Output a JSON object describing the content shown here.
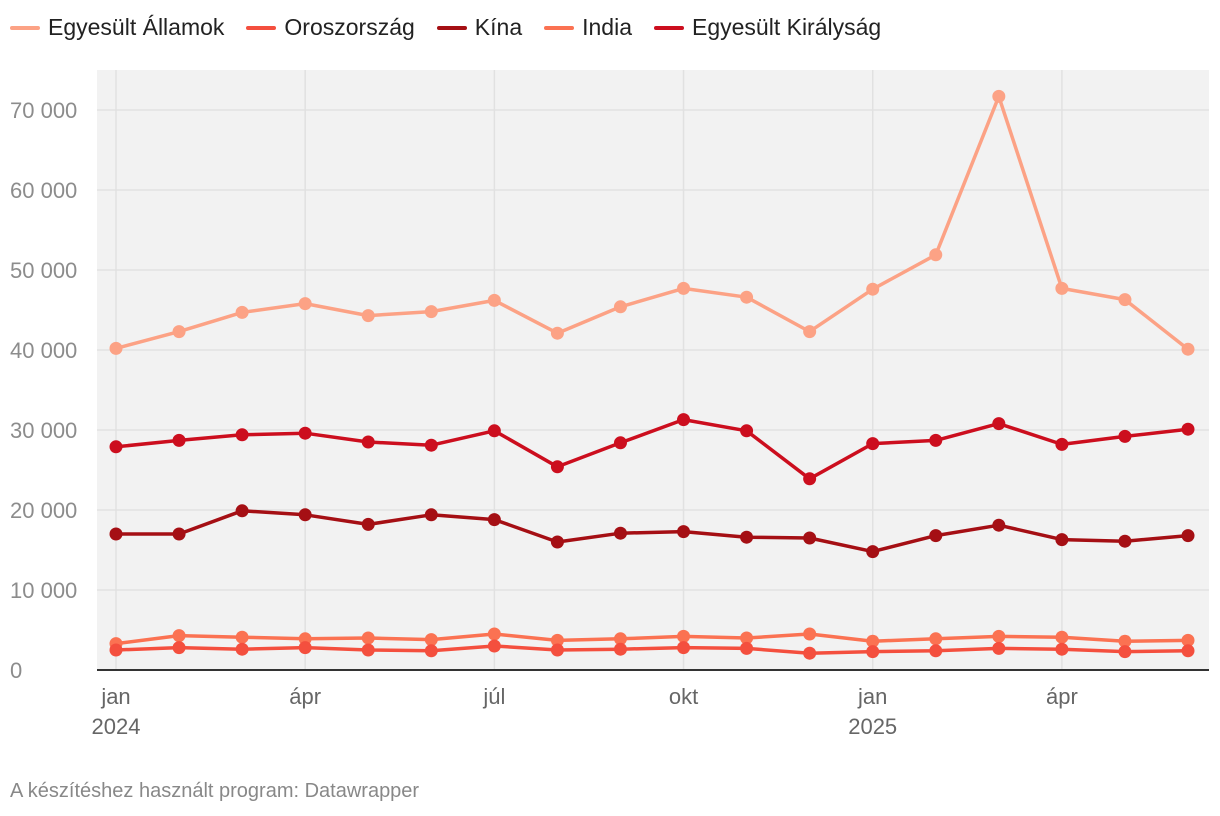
{
  "chart_data": {
    "type": "line",
    "x": [
      "2024-01",
      "2024-02",
      "2024-03",
      "2024-04",
      "2024-05",
      "2024-06",
      "2024-07",
      "2024-08",
      "2024-09",
      "2024-10",
      "2024-11",
      "2024-12",
      "2025-01",
      "2025-02",
      "2025-03",
      "2025-04",
      "2025-05",
      "2025-06"
    ],
    "x_ticks": [
      {
        "label": "jan",
        "year": "2024"
      },
      {
        "label": "ápr",
        "year": ""
      },
      {
        "label": "júl",
        "year": ""
      },
      {
        "label": "okt",
        "year": ""
      },
      {
        "label": "jan",
        "year": "2025"
      },
      {
        "label": "ápr",
        "year": ""
      }
    ],
    "ylim": [
      0,
      75000
    ],
    "yticks": [
      0,
      10000,
      20000,
      30000,
      40000,
      50000,
      60000,
      70000
    ],
    "ytick_labels": [
      "0",
      "10 000",
      "20 000",
      "30 000",
      "40 000",
      "50 000",
      "60 000",
      "70 000"
    ],
    "grid": true,
    "legend_position": "top-left",
    "series": [
      {
        "name": "Egyesült Államok",
        "color": "#fca285",
        "values": [
          40200,
          42300,
          44700,
          45800,
          44300,
          44800,
          46200,
          42100,
          45400,
          47700,
          46600,
          42300,
          47600,
          51900,
          71700,
          47700,
          46300,
          40100
        ]
      },
      {
        "name": "Oroszország",
        "color": "#f44f3e",
        "values": [
          2500,
          2800,
          2600,
          2800,
          2500,
          2400,
          3000,
          2500,
          2600,
          2800,
          2700,
          2100,
          2300,
          2400,
          2700,
          2600,
          2300,
          2400
        ]
      },
      {
        "name": "Kína",
        "color": "#a50f14",
        "values": [
          17000,
          17000,
          19900,
          19400,
          18200,
          19400,
          18800,
          16000,
          17100,
          17300,
          16600,
          16500,
          14800,
          16800,
          18100,
          16300,
          16100,
          16800
        ]
      },
      {
        "name": "India",
        "color": "#fb7252",
        "values": [
          3300,
          4300,
          4100,
          3900,
          4000,
          3800,
          4500,
          3700,
          3900,
          4200,
          4000,
          4500,
          3600,
          3900,
          4200,
          4100,
          3600,
          3700
        ]
      },
      {
        "name": "Egyesült Királyság",
        "color": "#cc0e1e",
        "values": [
          27900,
          28700,
          29400,
          29600,
          28500,
          28100,
          29900,
          25400,
          28400,
          31300,
          29900,
          23900,
          28300,
          28700,
          30800,
          28200,
          29200,
          30100
        ]
      }
    ]
  },
  "credit": "A készítéshez használt program: Datawrapper"
}
